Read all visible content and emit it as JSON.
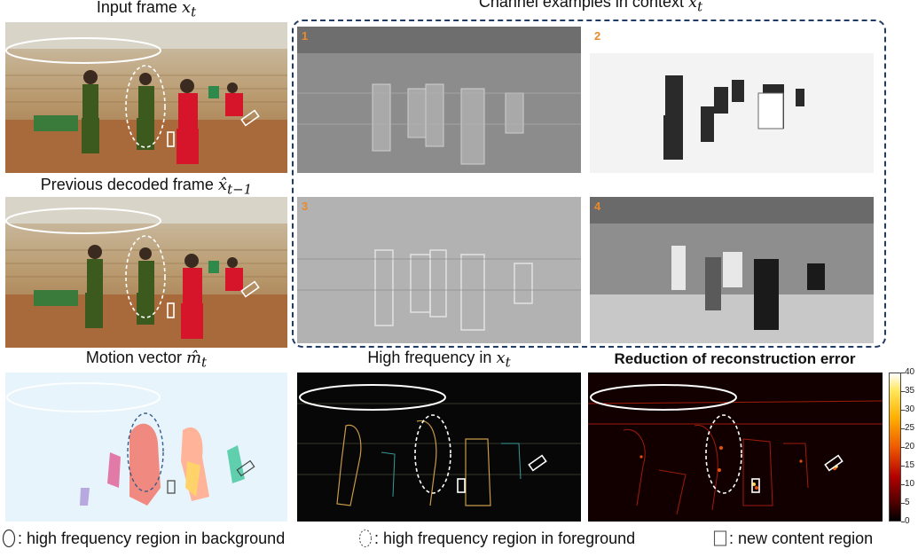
{
  "titles": {
    "input_frame": "Input frame",
    "input_frame_math": "x",
    "input_frame_sub": "t",
    "previous_frame": "Previous decoded frame",
    "previous_frame_math": "x̂",
    "previous_frame_sub": "t−1",
    "channel_examples": "Channel examples in context",
    "channel_examples_math": "x̄",
    "channel_examples_sub": "t",
    "motion_vector": "Motion vector",
    "motion_vector_math": "m̂",
    "motion_vector_sub": "t",
    "high_frequency": "High frequency in",
    "high_frequency_math": "x",
    "high_frequency_sub": "t",
    "reduction": "Reduction of reconstruction error"
  },
  "channels": [
    "1",
    "2",
    "3",
    "4"
  ],
  "colorbar": {
    "ticks": [
      "40",
      "35",
      "30",
      "25",
      "20",
      "15",
      "10",
      "5",
      "0"
    ],
    "colormap": "hot"
  },
  "legend": {
    "background": ": high frequency region in background",
    "foreground": ": high frequency region in foreground",
    "new_content": ": new content region"
  },
  "colors": {
    "context_border": "#1f3b66",
    "channel_number": "#e98a2b",
    "jersey_green": "#3d5a1e",
    "jersey_red": "#d6142a",
    "floor": "#a86a3a"
  }
}
